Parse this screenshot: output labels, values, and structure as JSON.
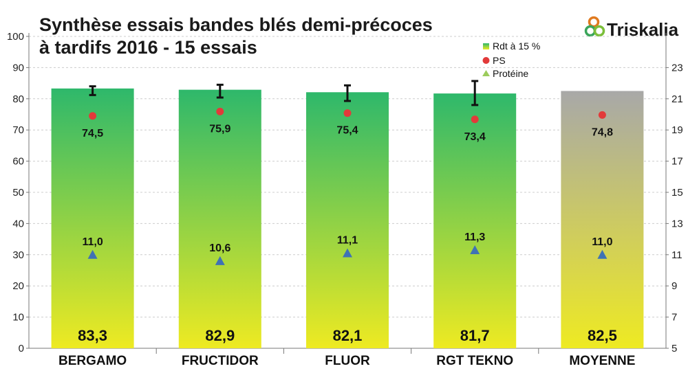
{
  "chart_data": {
    "type": "bar",
    "title_line1": "Synthèse essais bandes blés demi-précoces",
    "title_line2": "à tardifs 2016 - 15 essais",
    "logo_text": "Triskalia",
    "categories": [
      "BERGAMO",
      "FRUCTIDOR",
      "FLUOR",
      "RGT TEKNO",
      "MOYENNE"
    ],
    "series": [
      {
        "name": "Rdt à 15 %",
        "values": [
          83.3,
          82.9,
          82.1,
          81.7,
          82.5
        ],
        "labels": [
          "83,3",
          "82,9",
          "82,1",
          "81,7",
          "82,5"
        ],
        "error_low": [
          81.2,
          80.4,
          79.3,
          78.0,
          null
        ],
        "error_high": [
          84.0,
          84.5,
          84.3,
          85.7,
          null
        ]
      },
      {
        "name": "PS",
        "values": [
          74.5,
          75.9,
          75.4,
          73.4,
          74.8
        ],
        "labels": [
          "74,5",
          "75,9",
          "75,4",
          "73,4",
          "74,8"
        ]
      },
      {
        "name": "Protéine",
        "values": [
          11.0,
          10.6,
          11.1,
          11.3,
          11.0
        ],
        "labels": [
          "11,0",
          "10,6",
          "11,1",
          "11,3",
          "11,0"
        ]
      }
    ],
    "y_left": {
      "min": 0,
      "max": 100,
      "ticks": [
        "0",
        "10",
        "20",
        "30",
        "40",
        "50",
        "60",
        "70",
        "80",
        "90",
        "100"
      ]
    },
    "y_right": {
      "min": 5,
      "max": 25,
      "ticks": [
        "5",
        "7",
        "9",
        "11",
        "13",
        "15",
        "17",
        "19",
        "21",
        "23"
      ]
    },
    "colors": {
      "bar_top": "#2eb86b",
      "bar_bottom": "#eeea22",
      "avg_top": "#a8a8a8",
      "avg_bottom": "#eeea22",
      "ps": "#e23a3a",
      "protein": "#3f72b5",
      "protein_legend": "#9ccc5c",
      "grid": "#cccccc"
    },
    "legend_position": "top-right"
  }
}
